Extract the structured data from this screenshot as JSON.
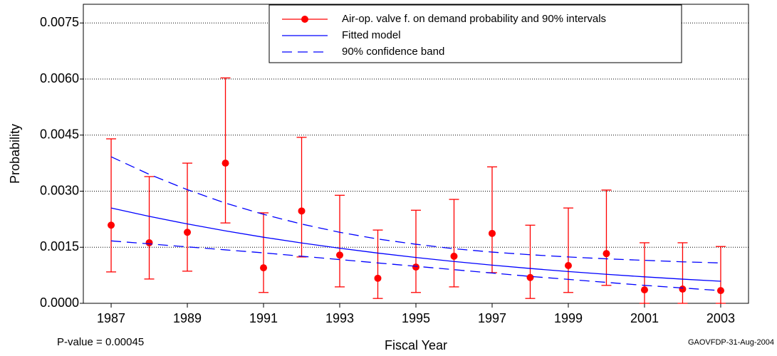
{
  "chart_data": {
    "type": "line",
    "xlabel": "Fiscal Year",
    "ylabel": "Probability",
    "annotations": [
      "P-value = 0.00045",
      "GAOVFDP-31-Aug-2004"
    ],
    "x": [
      1987,
      1988,
      1989,
      1990,
      1991,
      1992,
      1993,
      1994,
      1995,
      1996,
      1997,
      1998,
      1999,
      2000,
      2001,
      2002,
      2003
    ],
    "xlim": [
      1986.27,
      2003.73
    ],
    "xticks": [
      1987,
      1989,
      1991,
      1993,
      1995,
      1997,
      1999,
      2001,
      2003
    ],
    "ylim": [
      0,
      0.008
    ],
    "yticks": [
      {
        "value": 0,
        "label": "0.0000"
      },
      {
        "value": 0.0015,
        "label": "0.0015"
      },
      {
        "value": 0.003,
        "label": "0.0030"
      },
      {
        "value": 0.0045,
        "label": "0.0045"
      },
      {
        "value": 0.006,
        "label": "0.0060"
      },
      {
        "value": 0.0075,
        "label": "0.0075"
      }
    ],
    "grid": true,
    "legend": "top-right",
    "series": [
      {
        "name": "Air-op. valve f. on demand probability and 90% intervals",
        "color": "#ff0000",
        "values": [
          0.00209,
          0.00162,
          0.0019,
          0.00375,
          0.00095,
          0.00247,
          0.00129,
          0.00067,
          0.00097,
          0.00126,
          0.00187,
          0.00069,
          0.00101,
          0.00133,
          0.00036,
          0.00038,
          0.00034
        ],
        "lower": [
          0.00084,
          0.00065,
          0.00086,
          0.00215,
          0.00029,
          0.00124,
          0.00044,
          0.00013,
          0.00029,
          0.00044,
          0.00082,
          0.00013,
          0.00029,
          0.00048,
          0,
          0,
          0
        ],
        "upper": [
          0.0044,
          0.00339,
          0.00375,
          0.00603,
          0.00242,
          0.00444,
          0.00289,
          0.00196,
          0.00249,
          0.00278,
          0.00365,
          0.00209,
          0.00255,
          0.00303,
          0.00162,
          0.00162,
          0.00152
        ]
      },
      {
        "name": "Fitted model",
        "color": "#0000ff",
        "style": "solid",
        "values": [
          0.00255,
          0.002327,
          0.002123,
          0.001938,
          0.001768,
          0.001614,
          0.001473,
          0.001344,
          0.001226,
          0.001119,
          0.001021,
          0.000932,
          0.00085,
          0.000776,
          0.000708,
          0.000646,
          0.00059
        ]
      },
      {
        "name": "90% confidence band",
        "color": "#0000ff",
        "style": "dashed",
        "upper": [
          0.00392,
          0.00345,
          0.00304,
          0.00268,
          0.00238,
          0.00212,
          0.0019,
          0.00172,
          0.00158,
          0.00146,
          0.00137,
          0.0013,
          0.00124,
          0.00119,
          0.00115,
          0.00111,
          0.00108
        ],
        "lower": [
          0.00167,
          0.00159,
          0.00151,
          0.00143,
          0.00135,
          0.00126,
          0.00117,
          0.00108,
          0.00099,
          0.0009,
          0.00081,
          0.00072,
          0.00064,
          0.00056,
          0.00048,
          0.00041,
          0.00034
        ]
      }
    ]
  }
}
